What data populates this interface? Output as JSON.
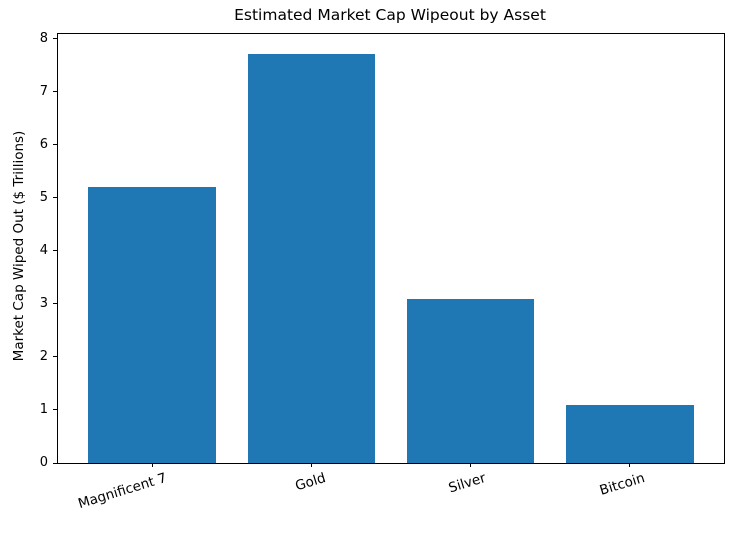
{
  "chart_data": {
    "type": "bar",
    "title": "Estimated Market Cap Wipeout by Asset",
    "xlabel": "",
    "ylabel": "Market Cap Wiped Out ($ Trillions)",
    "categories": [
      "Magnificent 7",
      "Gold",
      "Silver",
      "Bitcoin"
    ],
    "values": [
      5.2,
      7.7,
      3.1,
      1.1
    ],
    "yticks": [
      0,
      1,
      2,
      3,
      4,
      5,
      6,
      7,
      8
    ],
    "ylim": [
      0,
      8.085
    ],
    "xlim": [
      -0.59,
      3.59
    ],
    "bar_width": 0.8,
    "bar_color": "#1f77b4",
    "grid": false,
    "legend": "none",
    "background_color": "#ffffff",
    "text_color": "#000000"
  }
}
